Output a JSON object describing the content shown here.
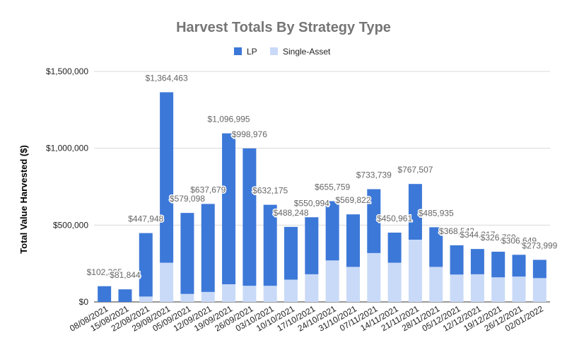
{
  "chart_data": {
    "type": "bar",
    "stacked": true,
    "title": "Harvest Totals By Strategy Type",
    "ylabel": "Total Value Harvested ($)",
    "xlabel": "",
    "ylim": [
      0,
      1500000
    ],
    "yticks": [
      0,
      500000,
      1000000,
      1500000
    ],
    "ytick_labels": [
      "$0",
      "$500,000",
      "$1,000,000",
      "$1,500,000"
    ],
    "grid": true,
    "legend_position": "top",
    "categories": [
      "08/08/2021",
      "15/08/2021",
      "22/08/2021",
      "29/08/2021",
      "05/09/2021",
      "12/09/2021",
      "19/09/2021",
      "26/09/2021",
      "03/10/2021",
      "10/10/2021",
      "17/10/2021",
      "24/10/2021",
      "31/10/2021",
      "07/11/2021",
      "14/11/2021",
      "21/11/2021",
      "28/11/2021",
      "05/12/2021",
      "12/12/2021",
      "19/12/2021",
      "26/12/2021",
      "02/01/2022"
    ],
    "series": [
      {
        "name": "Single-Asset",
        "color": "#c9daf8",
        "values": [
          0,
          0,
          35000,
          255000,
          52000,
          65000,
          115000,
          105000,
          105000,
          145000,
          180000,
          270000,
          228000,
          318000,
          255000,
          405000,
          228000,
          178000,
          180000,
          160000,
          165000,
          155000
        ]
      },
      {
        "name": "LP",
        "color": "#3c78d8",
        "values": [
          102365,
          81844,
          412948,
          1109463,
          527098,
          572679,
          981995,
          893976,
          527175,
          343248,
          370994,
          385759,
          341822,
          415739,
          195961,
          362507,
          257935,
          190543,
          164317,
          166769,
          141649,
          118999
        ]
      }
    ],
    "totals": [
      102365,
      81844,
      447948,
      1364463,
      579098,
      637679,
      1096995,
      998976,
      632175,
      488248,
      550994,
      655759,
      569822,
      733739,
      450961,
      767507,
      485935,
      368543,
      344317,
      326769,
      306649,
      273999
    ],
    "total_labels": [
      "$102,365",
      "$81,844",
      "$447,948",
      "$1,364,463",
      "$579,098",
      "$637,679",
      "$1,096,995",
      "$998,976",
      "$632,175",
      "$488,248",
      "$550,994",
      "$655,759",
      "$569,822",
      "$733,739",
      "$450,961",
      "$767,507",
      "$485,935",
      "$368,543",
      "$344,317",
      "$326,769",
      "$306,649",
      "$273,999"
    ]
  }
}
